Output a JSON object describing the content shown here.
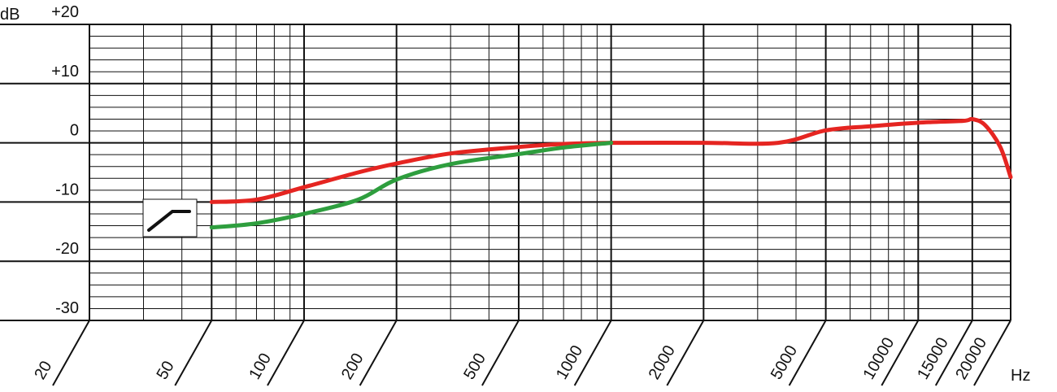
{
  "chart_data": {
    "type": "line",
    "xlabel": "Hz",
    "ylabel": "dB",
    "xscale": "log",
    "xlim": [
      20,
      20000
    ],
    "ylim": [
      -30,
      20
    ],
    "xticks": [
      20,
      50,
      100,
      200,
      500,
      1000,
      2000,
      5000,
      10000,
      15000,
      20000
    ],
    "yticks": [
      {
        "value": 20,
        "label": "+20"
      },
      {
        "value": 10,
        "label": "+10"
      },
      0,
      -10,
      -20,
      -30
    ],
    "xminorticks": [
      30,
      40,
      60,
      70,
      80,
      90,
      300,
      400,
      600,
      700,
      800,
      900,
      3000,
      4000,
      6000,
      7000,
      8000,
      9000
    ],
    "yminorticks": [
      -28,
      -26,
      -24,
      -22,
      -18,
      -16,
      -14,
      -12,
      -8,
      -6,
      -4,
      -2,
      2,
      4,
      6,
      8,
      12,
      14,
      16,
      18
    ],
    "grid": true,
    "x": [
      50,
      70,
      100,
      150,
      200,
      300,
      500,
      700,
      1000,
      2000,
      3500,
      5000,
      7000,
      10000,
      14000,
      15000,
      16500,
      18500,
      20000
    ],
    "series": [
      {
        "color": "#e52521",
        "values": [
          -10,
          -9.6,
          -7.5,
          -5,
          -3.5,
          -1.8,
          -0.7,
          -0.2,
          0,
          0,
          0,
          2.1,
          2.8,
          3.4,
          3.7,
          4,
          3,
          -0.7,
          -5.8
        ]
      },
      {
        "color": "#2e9e3e",
        "values": [
          -14.3,
          -13.6,
          -12,
          -9.6,
          -6.2,
          -3.6,
          -1.9,
          -0.8,
          0,
          null,
          null,
          null,
          null,
          null,
          null,
          null,
          null,
          null,
          null
        ]
      }
    ]
  }
}
